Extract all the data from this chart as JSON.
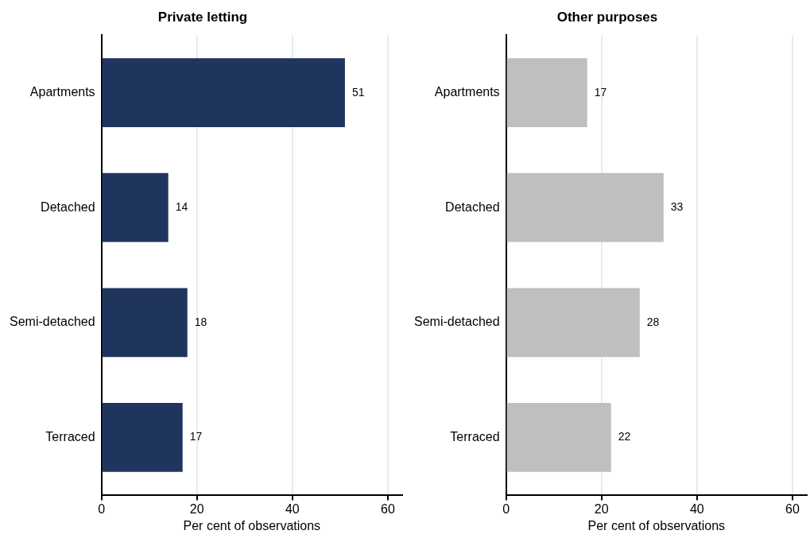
{
  "chart_data": [
    {
      "type": "bar",
      "orientation": "horizontal",
      "title": "Private letting",
      "xlabel": "Per cent of observations",
      "categories": [
        "Apartments",
        "Detached",
        "Semi-detached",
        "Terraced"
      ],
      "values": [
        51,
        14,
        18,
        17
      ],
      "color": "#1f355e",
      "xlim": [
        0,
        63
      ],
      "xticks": [
        0,
        20,
        40,
        60
      ],
      "grid": "x",
      "data_labels": true
    },
    {
      "type": "bar",
      "orientation": "horizontal",
      "title": "Other purposes",
      "xlabel": "Per cent of observations",
      "categories": [
        "Apartments",
        "Detached",
        "Semi-detached",
        "Terraced"
      ],
      "values": [
        17,
        33,
        28,
        22
      ],
      "color": "#bfbfbf",
      "xlim": [
        0,
        63
      ],
      "xticks": [
        0,
        20,
        40,
        60
      ],
      "grid": "x",
      "data_labels": true
    }
  ]
}
